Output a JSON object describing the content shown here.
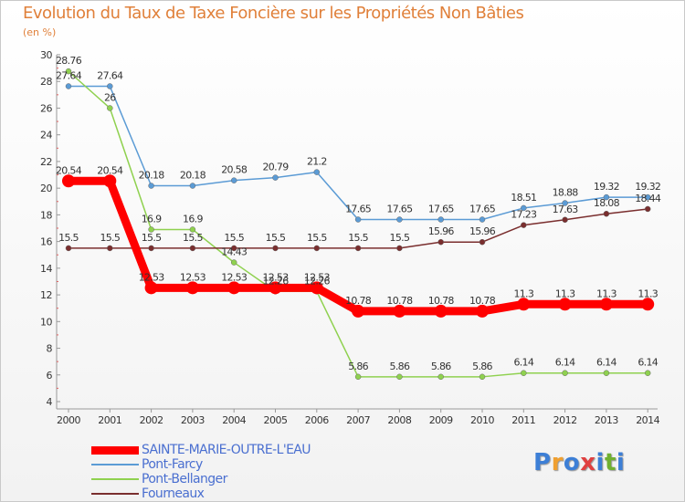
{
  "chart_data": {
    "type": "line",
    "title": "Evolution du Taux de Taxe Foncière sur les Propriétés Non Bâties",
    "subtitle": "(en %)",
    "xlabel": "",
    "ylabel": "",
    "ylim": [
      4,
      30
    ],
    "yticks": [
      4,
      6,
      8,
      10,
      12,
      14,
      16,
      18,
      20,
      22,
      24,
      26,
      28,
      30
    ],
    "categories": [
      "2000",
      "2001",
      "2002",
      "2003",
      "2004",
      "2005",
      "2006",
      "2007",
      "2008",
      "2009",
      "2010",
      "2011",
      "2012",
      "2013",
      "2014"
    ],
    "series": [
      {
        "name": "SAINTE-MARIE-OUTRE-L'EAU",
        "color": "#ff0000",
        "values": [
          20.54,
          20.54,
          12.53,
          12.53,
          12.53,
          12.53,
          12.53,
          10.78,
          10.78,
          10.78,
          10.78,
          11.3,
          11.3,
          11.3,
          11.3
        ]
      },
      {
        "name": "Pont-Farcy",
        "color": "#5b9bd5",
        "values": [
          27.64,
          27.64,
          20.18,
          20.18,
          20.58,
          20.79,
          21.2,
          17.65,
          17.65,
          17.65,
          17.65,
          18.51,
          18.88,
          19.32,
          19.32
        ]
      },
      {
        "name": "Pont-Bellanger",
        "color": "#8fd14f",
        "values": [
          28.76,
          26,
          16.9,
          16.9,
          14.43,
          12.26,
          12.26,
          5.86,
          5.86,
          5.86,
          5.86,
          6.14,
          6.14,
          6.14,
          6.14
        ]
      },
      {
        "name": "Fourneaux",
        "color": "#7a2e2e",
        "values": [
          15.5,
          15.5,
          15.5,
          15.5,
          15.5,
          15.5,
          15.5,
          15.5,
          15.5,
          15.96,
          15.96,
          17.23,
          17.63,
          18.08,
          18.44
        ]
      }
    ],
    "data_labels": [
      [
        "20.54",
        "20.54",
        "12.53",
        "12.53",
        "12.53",
        "12.53",
        "12.53",
        "10.78",
        "10.78",
        "10.78",
        "10.78",
        "11.3",
        "11.3",
        "11.3",
        "11.3"
      ],
      [
        "27.64",
        "27.64",
        "20.18",
        "20.18",
        "20.58",
        "20.79",
        "21.2",
        "17.65",
        "17.65",
        "17.65",
        "17.65",
        "18.51",
        "18.88",
        "19.32",
        "19.32"
      ],
      [
        "28.76",
        "26",
        "16.9",
        "16.9",
        "14.43",
        "12.26",
        "12.26",
        "5.86",
        "5.86",
        "5.86",
        "5.86",
        "6.14",
        "6.14",
        "6.14",
        "6.14"
      ],
      [
        "15.5",
        "15.5",
        "15.5",
        "15.5",
        "15.5",
        "15.5",
        "15.5",
        "15.5",
        "15.5",
        "15.96",
        "15.96",
        "17.23",
        "17.63",
        "18.08",
        "18.44"
      ]
    ],
    "grid": false,
    "legend_position": "bottom-left"
  },
  "logo": {
    "text": "Proxiti",
    "letters": [
      "P",
      "r",
      "o",
      "x",
      "i",
      "t",
      "i"
    ],
    "colors": [
      "#3d7fd6",
      "#f0a030",
      "#3d7fd6",
      "#e04040",
      "#3d7fd6",
      "#70b030",
      "#3d7fd6"
    ]
  },
  "legend_swatch_widths": {
    "SAINTE-MARIE-OUTRE-L'EAU": 9,
    "Pont-Farcy": 2,
    "Pont-Bellanger": 2,
    "Fourneaux": 2
  }
}
